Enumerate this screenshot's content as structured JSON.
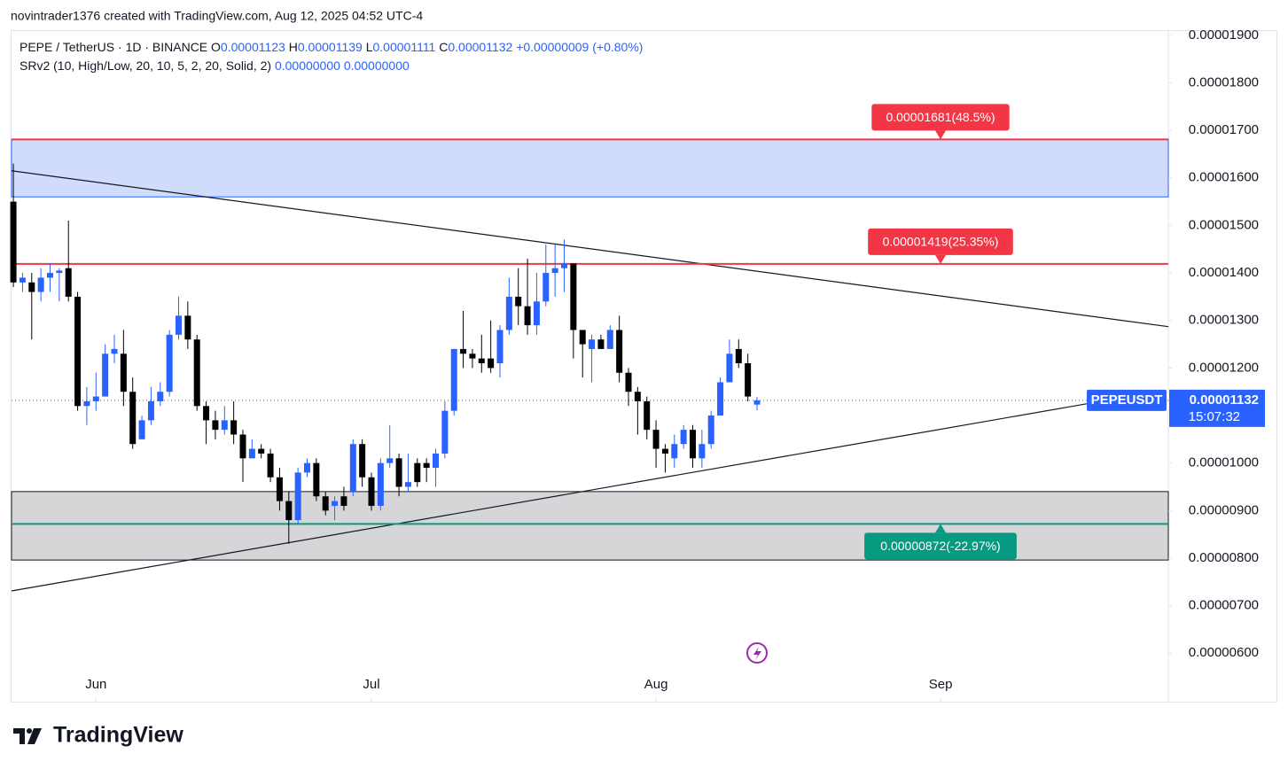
{
  "chart_data": {
    "type": "candlestick",
    "credit": "novintrader1376 created with TradingView.com, Aug 12, 2025 04:52 UTC-4",
    "symbol_line": "PEPE / TetherUS · 1D · BINANCE",
    "ohlc_legend": [
      {
        "key": "O",
        "label": "0.00001123"
      },
      {
        "key": "H",
        "label": "0.00001139"
      },
      {
        "key": "L",
        "label": "0.00001111"
      },
      {
        "key": "C",
        "label": "0.00001132"
      }
    ],
    "change": "+0.00000009 (+0.80%)",
    "indicator": "SRv2 (10, High/Low, 20, 10, 5, 2, 20, Solid, 2)",
    "indicator_values": [
      "0.00000000",
      "0.00000000"
    ],
    "logo": "TradingView",
    "up_color": "#2962ff",
    "down_color": "#000000",
    "xlim": [
      -0.2,
      125.8
    ],
    "ylim": [
      4.98e-06,
      1.909e-05
    ],
    "xticks": [
      {
        "value": 9,
        "label": "Jun"
      },
      {
        "value": 39,
        "label": "Jul"
      },
      {
        "value": 70,
        "label": "Aug"
      },
      {
        "value": 101,
        "label": "Sep"
      }
    ],
    "yticks": [
      {
        "value": 1.9e-05,
        "label": "0.00001900"
      },
      {
        "value": 1.8e-05,
        "label": "0.00001800"
      },
      {
        "value": 1.7e-05,
        "label": "0.00001700"
      },
      {
        "value": 1.6e-05,
        "label": "0.00001600"
      },
      {
        "value": 1.5e-05,
        "label": "0.00001500"
      },
      {
        "value": 1.4e-05,
        "label": "0.00001400"
      },
      {
        "value": 1.3e-05,
        "label": "0.00001300"
      },
      {
        "value": 1.2e-05,
        "label": "0.00001200"
      },
      {
        "value": 1e-05,
        "label": "0.00001000"
      },
      {
        "value": 9e-06,
        "label": "0.00000900"
      },
      {
        "value": 8e-06,
        "label": "0.00000800"
      },
      {
        "value": 7e-06,
        "label": "0.00000700"
      },
      {
        "value": 6e-06,
        "label": "0.00000600"
      }
    ],
    "open": [
      1.55e-05,
      1.38e-05,
      1.38e-05,
      1.36e-05,
      1.39e-05,
      1.4e-05,
      1.41e-05,
      1.35e-05,
      1.12e-05,
      1.13e-05,
      1.14e-05,
      1.23e-05,
      1.23e-05,
      1.15e-05,
      1.05e-05,
      1.09e-05,
      1.13e-05,
      1.15e-05,
      1.27e-05,
      1.31e-05,
      1.26e-05,
      1.12e-05,
      1.09e-05,
      1.07e-05,
      1.09e-05,
      1.06e-05,
      1.01e-05,
      1.03e-05,
      1.02e-05,
      9.7e-06,
      9.2e-06,
      8.8e-06,
      9.8e-06,
      1e-05,
      9.3e-06,
      9.1e-06,
      9.3e-06,
      9.4e-06,
      1.04e-05,
      9.7e-06,
      9.1e-06,
      1e-05,
      1.01e-05,
      9.5e-06,
      1e-05,
      1e-05,
      9.9e-06,
      1.02e-05,
      1.11e-05,
      1.24e-05,
      1.23e-05,
      1.22e-05,
      1.22e-05,
      1.21e-05,
      1.28e-05,
      1.35e-05,
      1.33e-05,
      1.29e-05,
      1.34e-05,
      1.4e-05,
      1.41e-05,
      1.42e-05,
      1.28e-05,
      1.24e-05,
      1.26e-05,
      1.24e-05,
      1.28e-05,
      1.19e-05,
      1.15e-05,
      1.13e-05,
      1.07e-05,
      1.03e-05,
      1.01e-05,
      1.04e-05,
      1.07e-05,
      1.01e-05,
      1.04e-05,
      1.1e-05,
      1.17e-05,
      1.24e-05,
      1.21e-05,
      1.123e-05
    ],
    "high": [
      1.63e-05,
      1.4e-05,
      1.4e-05,
      1.41e-05,
      1.42e-05,
      1.41e-05,
      1.51e-05,
      1.36e-05,
      1.16e-05,
      1.19e-05,
      1.25e-05,
      1.27e-05,
      1.28e-05,
      1.18e-05,
      1.1e-05,
      1.16e-05,
      1.17e-05,
      1.28e-05,
      1.35e-05,
      1.34e-05,
      1.27e-05,
      1.13e-05,
      1.11e-05,
      1.12e-05,
      1.13e-05,
      1.07e-05,
      1.05e-05,
      1.04e-05,
      1.03e-05,
      9.9e-06,
      9.4e-06,
      9.9e-06,
      1.01e-05,
      1.01e-05,
      9.4e-06,
      9.3e-06,
      9.5e-06,
      1.05e-05,
      1.05e-05,
      9.8e-06,
      1.01e-05,
      1.08e-05,
      1.02e-05,
      1.02e-05,
      1.01e-05,
      1.01e-05,
      1.03e-05,
      1.13e-05,
      1.24e-05,
      1.32e-05,
      1.24e-05,
      1.27e-05,
      1.3e-05,
      1.29e-05,
      1.39e-05,
      1.41e-05,
      1.43e-05,
      1.4e-05,
      1.46e-05,
      1.46e-05,
      1.47e-05,
      1.42e-05,
      1.28e-05,
      1.27e-05,
      1.27e-05,
      1.29e-05,
      1.31e-05,
      1.2e-05,
      1.16e-05,
      1.14e-05,
      1.09e-05,
      1.04e-05,
      1.06e-05,
      1.08e-05,
      1.08e-05,
      1.07e-05,
      1.11e-05,
      1.18e-05,
      1.26e-05,
      1.26e-05,
      1.23e-05,
      1.139e-05
    ],
    "low": [
      1.37e-05,
      1.36e-05,
      1.26e-05,
      1.34e-05,
      1.36e-05,
      1.34e-05,
      1.34e-05,
      1.11e-05,
      1.08e-05,
      1.11e-05,
      1.14e-05,
      1.21e-05,
      1.12e-05,
      1.03e-05,
      1.05e-05,
      1.08e-05,
      1.12e-05,
      1.14e-05,
      1.26e-05,
      1.24e-05,
      1.11e-05,
      1.04e-05,
      1.05e-05,
      1.06e-05,
      1.04e-05,
      9.6e-06,
      1.01e-05,
      1.01e-05,
      9.6e-06,
      9e-06,
      8.3e-06,
      8.7e-06,
      9.7e-06,
      9.2e-06,
      8.9e-06,
      8.8e-06,
      9e-06,
      9.3e-06,
      9.5e-06,
      9e-06,
      9e-06,
      9.9e-06,
      9.3e-06,
      9.4e-06,
      9.5e-06,
      9.6e-06,
      9.5e-06,
      1.01e-05,
      1.1e-05,
      1.2e-05,
      1.2e-05,
      1.19e-05,
      1.19e-05,
      1.18e-05,
      1.27e-05,
      1.29e-05,
      1.27e-05,
      1.27e-05,
      1.33e-05,
      1.35e-05,
      1.36e-05,
      1.22e-05,
      1.18e-05,
      1.17e-05,
      1.24e-05,
      1.24e-05,
      1.17e-05,
      1.12e-05,
      1.06e-05,
      1.05e-05,
      9.9e-06,
      9.8e-06,
      9.9e-06,
      1.03e-05,
      9.9e-06,
      9.9e-06,
      1.03e-05,
      1.1e-05,
      1.17e-05,
      1.2e-05,
      1.13e-05,
      1.111e-05
    ],
    "close": [
      1.38e-05,
      1.39e-05,
      1.36e-05,
      1.39e-05,
      1.4e-05,
      1.405e-05,
      1.35e-05,
      1.12e-05,
      1.13e-05,
      1.14e-05,
      1.23e-05,
      1.24e-05,
      1.15e-05,
      1.04e-05,
      1.09e-05,
      1.13e-05,
      1.15e-05,
      1.27e-05,
      1.31e-05,
      1.26e-05,
      1.12e-05,
      1.09e-05,
      1.07e-05,
      1.09e-05,
      1.06e-05,
      1.01e-05,
      1.03e-05,
      1.02e-05,
      9.7e-06,
      9.2e-06,
      8.8e-06,
      9.8e-06,
      1e-05,
      9.3e-06,
      9e-06,
      9.2e-06,
      9.1e-06,
      1.04e-05,
      9.7e-06,
      9.1e-06,
      1e-05,
      1.01e-05,
      9.5e-06,
      9.6e-06,
      9.6e-06,
      9.9e-06,
      1.02e-05,
      1.11e-05,
      1.24e-05,
      1.23e-05,
      1.22e-05,
      1.21e-05,
      1.2e-05,
      1.28e-05,
      1.35e-05,
      1.33e-05,
      1.29e-05,
      1.34e-05,
      1.4e-05,
      1.41e-05,
      1.42e-05,
      1.28e-05,
      1.25e-05,
      1.26e-05,
      1.24e-05,
      1.28e-05,
      1.19e-05,
      1.15e-05,
      1.13e-05,
      1.07e-05,
      1.03e-05,
      1.02e-05,
      1.04e-05,
      1.07e-05,
      1.01e-05,
      1.04e-05,
      1.1e-05,
      1.17e-05,
      1.23e-05,
      1.21e-05,
      1.14e-05,
      1.132e-05
    ],
    "zones": [
      {
        "from": 1.56e-05,
        "to": 1.681e-05,
        "color": "#d1dcfd",
        "edge": "#2962ff"
      },
      {
        "from": 7.96e-06,
        "to": 9.4e-06,
        "color": "#d6d6d8",
        "edge": "#131722"
      }
    ],
    "levels": [
      {
        "value": 1.681e-05,
        "label": "0.00001681(48.5%)",
        "color": "#f23645"
      },
      {
        "value": 1.419e-05,
        "label": "0.00001419(25.35%)",
        "color": "#f23645"
      },
      {
        "value": 8.72e-06,
        "label": "0.00000872(-22.97%)",
        "color": "#089981"
      }
    ],
    "trendlines": [
      {
        "x": [
          -0.2,
          125.8
        ],
        "y": [
          1.615e-05,
          1.287e-05
        ]
      },
      {
        "x": [
          -0.2,
          117.3
        ],
        "y": [
          7.31e-06,
          1.126e-05
        ]
      }
    ],
    "last_price": {
      "symbol": "PEPEUSDT",
      "value": 1.132e-05,
      "label": "0.00001132",
      "countdown": "15:07:32",
      "color": "#2962ff"
    }
  }
}
